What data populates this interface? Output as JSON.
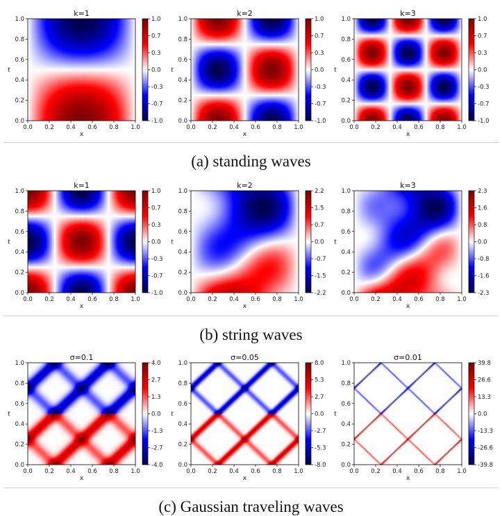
{
  "figure": {
    "rows": [
      {
        "caption": "(a) standing waves",
        "panels": [
          {
            "title": "k=1",
            "field": "standing",
            "k": 1,
            "cbar_ticks": [
              "1.0",
              "0.7",
              "0.3",
              "0.0",
              "-0.3",
              "-0.7",
              "-1.0"
            ]
          },
          {
            "title": "k=2",
            "field": "standing",
            "k": 2,
            "cbar_ticks": [
              "1.0",
              "0.7",
              "0.3",
              "0.0",
              "-0.3",
              "-0.7",
              "-1.0"
            ]
          },
          {
            "title": "k=3",
            "field": "standing",
            "k": 3,
            "cbar_ticks": [
              "1.0",
              "0.7",
              "0.3",
              "0.0",
              "-0.3",
              "-0.7",
              "-1.0"
            ]
          }
        ]
      },
      {
        "caption": "(b) string waves",
        "panels": [
          {
            "title": "k=1",
            "field": "string",
            "k": 1,
            "cbar_ticks": [
              "1.0",
              "0.7",
              "0.3",
              "0.0",
              "-0.3",
              "-0.7",
              "-1.0"
            ]
          },
          {
            "title": "k=2",
            "field": "string",
            "k": 2,
            "cbar_ticks": [
              "2.2",
              "1.5",
              "0.7",
              "0.0",
              "-0.7",
              "-1.5",
              "-2.2"
            ]
          },
          {
            "title": "k=3",
            "field": "string",
            "k": 3,
            "cbar_ticks": [
              "2.3",
              "1.6",
              "0.8",
              "0.0",
              "-0.8",
              "-1.6",
              "-2.3"
            ]
          }
        ]
      },
      {
        "caption": "(c) Gaussian traveling waves",
        "panels": [
          {
            "title": "σ=0.1",
            "field": "gauss",
            "sigma": 0.1,
            "cbar_ticks": [
              "4.0",
              "2.7",
              "1.3",
              "0.0",
              "-1.3",
              "-2.7",
              "-4.0"
            ]
          },
          {
            "title": "σ=0.05",
            "field": "gauss",
            "sigma": 0.05,
            "cbar_ticks": [
              "8.0",
              "5.3",
              "2.7",
              "0.0",
              "-2.7",
              "-5.3",
              "-8.0"
            ]
          },
          {
            "title": "σ=0.01",
            "field": "gauss",
            "sigma": 0.01,
            "cbar_ticks": [
              "39.8",
              "26.6",
              "13.3",
              "0.0",
              "-13.3",
              "-26.6",
              "-39.8"
            ]
          }
        ]
      }
    ]
  },
  "chart_data": {
    "type": "heatmap",
    "xlabel": "x",
    "ylabel": "t",
    "xlim": [
      0,
      1
    ],
    "ylim": [
      0,
      1
    ],
    "x_ticks": [
      "0.0",
      "0.2",
      "0.4",
      "0.6",
      "0.8",
      "1.0"
    ],
    "y_ticks": [
      "0.0",
      "0.2",
      "0.4",
      "0.6",
      "0.8",
      "1.0"
    ],
    "colormap": "seismic",
    "colors": {
      "negative": "#00004d",
      "zero": "#ffffff",
      "positive": "#800000"
    }
  }
}
